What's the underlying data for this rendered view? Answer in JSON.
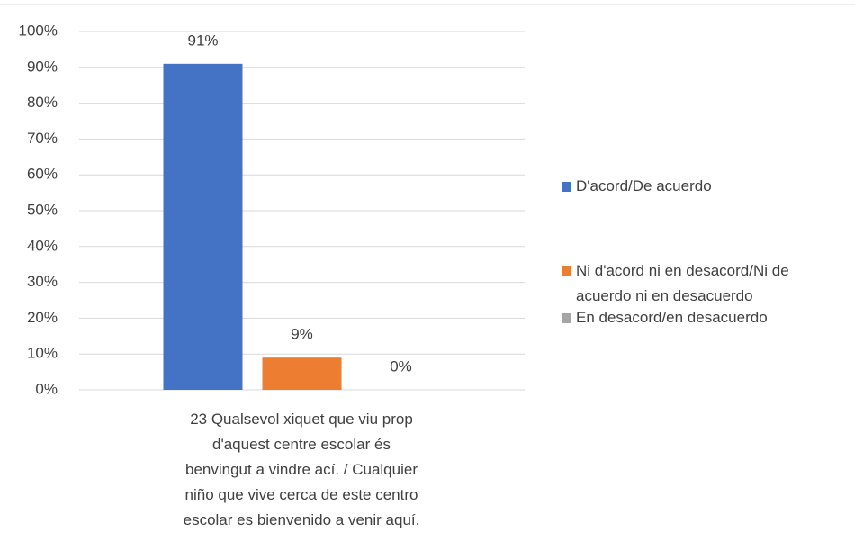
{
  "chart_data": {
    "type": "bar",
    "categories": [
      "23 Qualsevol xiquet que viu prop d'aquest centre escolar és benvingut a vindre ací. /  Cualquier niño que vive cerca de este centro escolar es bienvenido a venir aquí."
    ],
    "series": [
      {
        "name": "D'acord/De acuerdo",
        "color": "#4472c4",
        "values": [
          91
        ],
        "value_labels": [
          "91%"
        ]
      },
      {
        "name": "Ni d'acord ni en desacord/Ni de acuerdo ni en desacuerdo",
        "color": "#ed7d31",
        "values": [
          9
        ],
        "value_labels": [
          "9%"
        ]
      },
      {
        "name": "En desacord/en desacuerdo",
        "color": "#a5a5a5",
        "values": [
          0
        ],
        "value_labels": [
          "0%"
        ]
      }
    ],
    "ylim": [
      0,
      100
    ],
    "yticks": [
      {
        "value": 0,
        "label": "0%"
      },
      {
        "value": 10,
        "label": "10%"
      },
      {
        "value": 20,
        "label": "20%"
      },
      {
        "value": 30,
        "label": "30%"
      },
      {
        "value": 40,
        "label": "40%"
      },
      {
        "value": 50,
        "label": "50%"
      },
      {
        "value": 60,
        "label": "60%"
      },
      {
        "value": 70,
        "label": "70%"
      },
      {
        "value": 80,
        "label": "80%"
      },
      {
        "value": 90,
        "label": "90%"
      },
      {
        "value": 100,
        "label": "100%"
      }
    ],
    "grid": true,
    "legend": "right"
  }
}
